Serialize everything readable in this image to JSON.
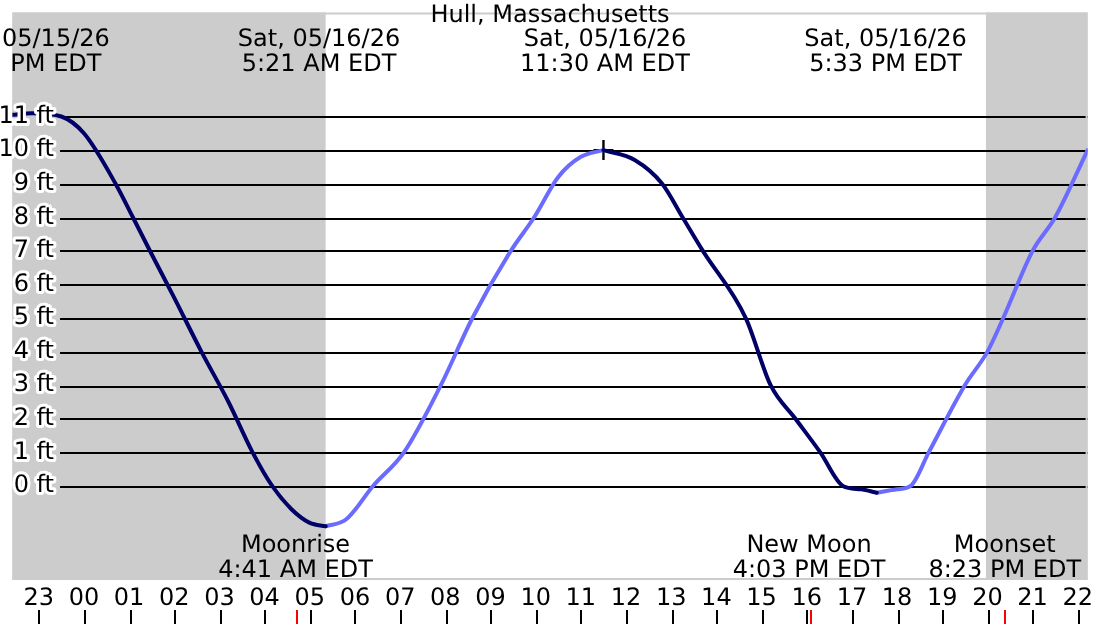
{
  "chart_data": {
    "type": "line",
    "title": "Hull, Massachusetts",
    "marker": "none",
    "grid": "y",
    "legend": false,
    "xlim": [
      "--05-15T22:25",
      "--05-16T22:13"
    ],
    "ylim": [
      -2.8,
      14.1
    ],
    "xticks": [
      {
        "value": "--05-15T23:00",
        "label": "23"
      },
      {
        "value": "--05-16T00:00",
        "label": "00"
      },
      {
        "value": "--05-16T01:00",
        "label": "01"
      },
      {
        "value": "--05-16T02:00",
        "label": "02"
      },
      {
        "value": "--05-16T03:00",
        "label": "03"
      },
      {
        "value": "--05-16T04:00",
        "label": "04"
      },
      {
        "value": "--05-16T05:00",
        "label": "05"
      },
      {
        "value": "--05-16T06:00",
        "label": "06"
      },
      {
        "value": "--05-16T07:00",
        "label": "07"
      },
      {
        "value": "--05-16T08:00",
        "label": "08"
      },
      {
        "value": "--05-16T09:00",
        "label": "09"
      },
      {
        "value": "--05-16T10:00",
        "label": "10"
      },
      {
        "value": "--05-16T11:00",
        "label": "11"
      },
      {
        "value": "--05-16T12:00",
        "label": "12"
      },
      {
        "value": "--05-16T13:00",
        "label": "13"
      },
      {
        "value": "--05-16T14:00",
        "label": "14"
      },
      {
        "value": "--05-16T15:00",
        "label": "15"
      },
      {
        "value": "--05-16T16:00",
        "label": "16"
      },
      {
        "value": "--05-16T17:00",
        "label": "17"
      },
      {
        "value": "--05-16T18:00",
        "label": "18"
      },
      {
        "value": "--05-16T19:00",
        "label": "19"
      },
      {
        "value": "--05-16T20:00",
        "label": "20"
      },
      {
        "value": "--05-16T21:00",
        "label": "21"
      },
      {
        "value": "--05-16T22:00",
        "label": "22"
      }
    ],
    "yticks": [
      {
        "value": 0,
        "label": "0 ft"
      },
      {
        "value": 1,
        "label": "1 ft"
      },
      {
        "value": 2,
        "label": "2 ft"
      },
      {
        "value": 3,
        "label": "3 ft"
      },
      {
        "value": 4,
        "label": "4 ft"
      },
      {
        "value": 5,
        "label": "5 ft"
      },
      {
        "value": 6,
        "label": "6 ft"
      },
      {
        "value": 7,
        "label": "7 ft"
      },
      {
        "value": 8,
        "label": "8 ft"
      },
      {
        "value": 9,
        "label": "9 ft"
      },
      {
        "value": 10,
        "label": "10 ft"
      },
      {
        "value": 11,
        "label": "11 ft"
      }
    ],
    "series": [
      {
        "color": "#000066",
        "x": [
          "--05-15T22:25",
          "--05-15T22:51",
          "--05-15T23:30",
          "--05-16T00:00",
          "--05-16T00:42",
          "--05-16T01:05",
          "--05-16T01:30",
          "--05-16T02:00",
          "--05-16T02:36",
          "--05-16T03:12",
          "--05-16T03:44",
          "--05-16T04:10",
          "--05-16T04:36",
          "--05-16T05:00",
          "--05-16T05:21",
          "--05-16T05:22",
          "--05-16T11:30",
          "--05-16T12:12",
          "--05-16T12:48",
          "--05-16T13:15",
          "--05-16T13:42",
          "--05-16T14:39",
          "--05-16T15:12",
          "--05-16T15:45",
          "--05-16T16:18",
          "--05-16T16:48",
          "--05-16T17:12",
          "--05-16T17:33"
        ],
        "values": [
          11.05,
          11.1,
          11.0,
          10.5,
          9,
          8,
          6.9,
          5.6,
          4,
          2.5,
          1,
          0,
          -0.7,
          -1.1,
          -1.2,
          null,
          10.0,
          9.7,
          9,
          8,
          7,
          5,
          3,
          2,
          1,
          0,
          -0.1,
          -0.2
        ]
      },
      {
        "color": "#6b6bff",
        "x": [
          "--05-16T05:21",
          "--05-16T05:48",
          "--05-16T06:24",
          "--05-16T07:05",
          "--05-16T07:54",
          "--05-16T08:36",
          "--05-16T09:27",
          "--05-16T09:58",
          "--05-16T10:30",
          "--05-16T11:00",
          "--05-16T11:30",
          "--05-16T11:31",
          "--05-16T17:33",
          "--05-16T18:00",
          "--05-16T18:18",
          "--05-16T18:42",
          "--05-16T19:30",
          "--05-16T20:00",
          "--05-16T20:21",
          "--05-16T21:00",
          "--05-16T21:30",
          "--05-16T22:13"
        ],
        "values": [
          -1.2,
          -1.0,
          0,
          1,
          3,
          5,
          7,
          8,
          9.2,
          9.8,
          10.0,
          null,
          -0.2,
          -0.1,
          0,
          1,
          3,
          4,
          5,
          7,
          8,
          10
        ]
      },
      {
        "type": "scatter",
        "marker": "cross",
        "color": "#000000",
        "x": [
          "--05-16T11:30"
        ],
        "values": [
          10.0
        ]
      }
    ],
    "bands": [
      {
        "axis": "x",
        "from": "--05-15T22:25",
        "to": "--05-16T05:21",
        "color": "#cccccc"
      },
      {
        "axis": "x",
        "from": "--05-16T19:58",
        "to": "--05-16T22:13",
        "color": "#cccccc"
      }
    ],
    "ref_lines": [
      {
        "axis": "x",
        "value": "--05-16T04:41",
        "label": "Moonrise\n4:41 AM EDT",
        "color": "#ff0000"
      },
      {
        "axis": "x",
        "value": "--05-16T16:03",
        "label": "New Moon\n4:03 PM EDT",
        "color": "#ff0000"
      },
      {
        "axis": "x",
        "value": "--05-16T20:23",
        "label": "Moonset\n8:23 PM EDT",
        "color": "#ff0000"
      }
    ],
    "annotations": [
      "05/15/26\nPM EDT",
      "Sat, 05/16/26\n5:21 AM EDT",
      "Sat, 05/16/26\n11:30 AM EDT",
      "Sat, 05/16/26\n5:33 PM EDT"
    ]
  }
}
